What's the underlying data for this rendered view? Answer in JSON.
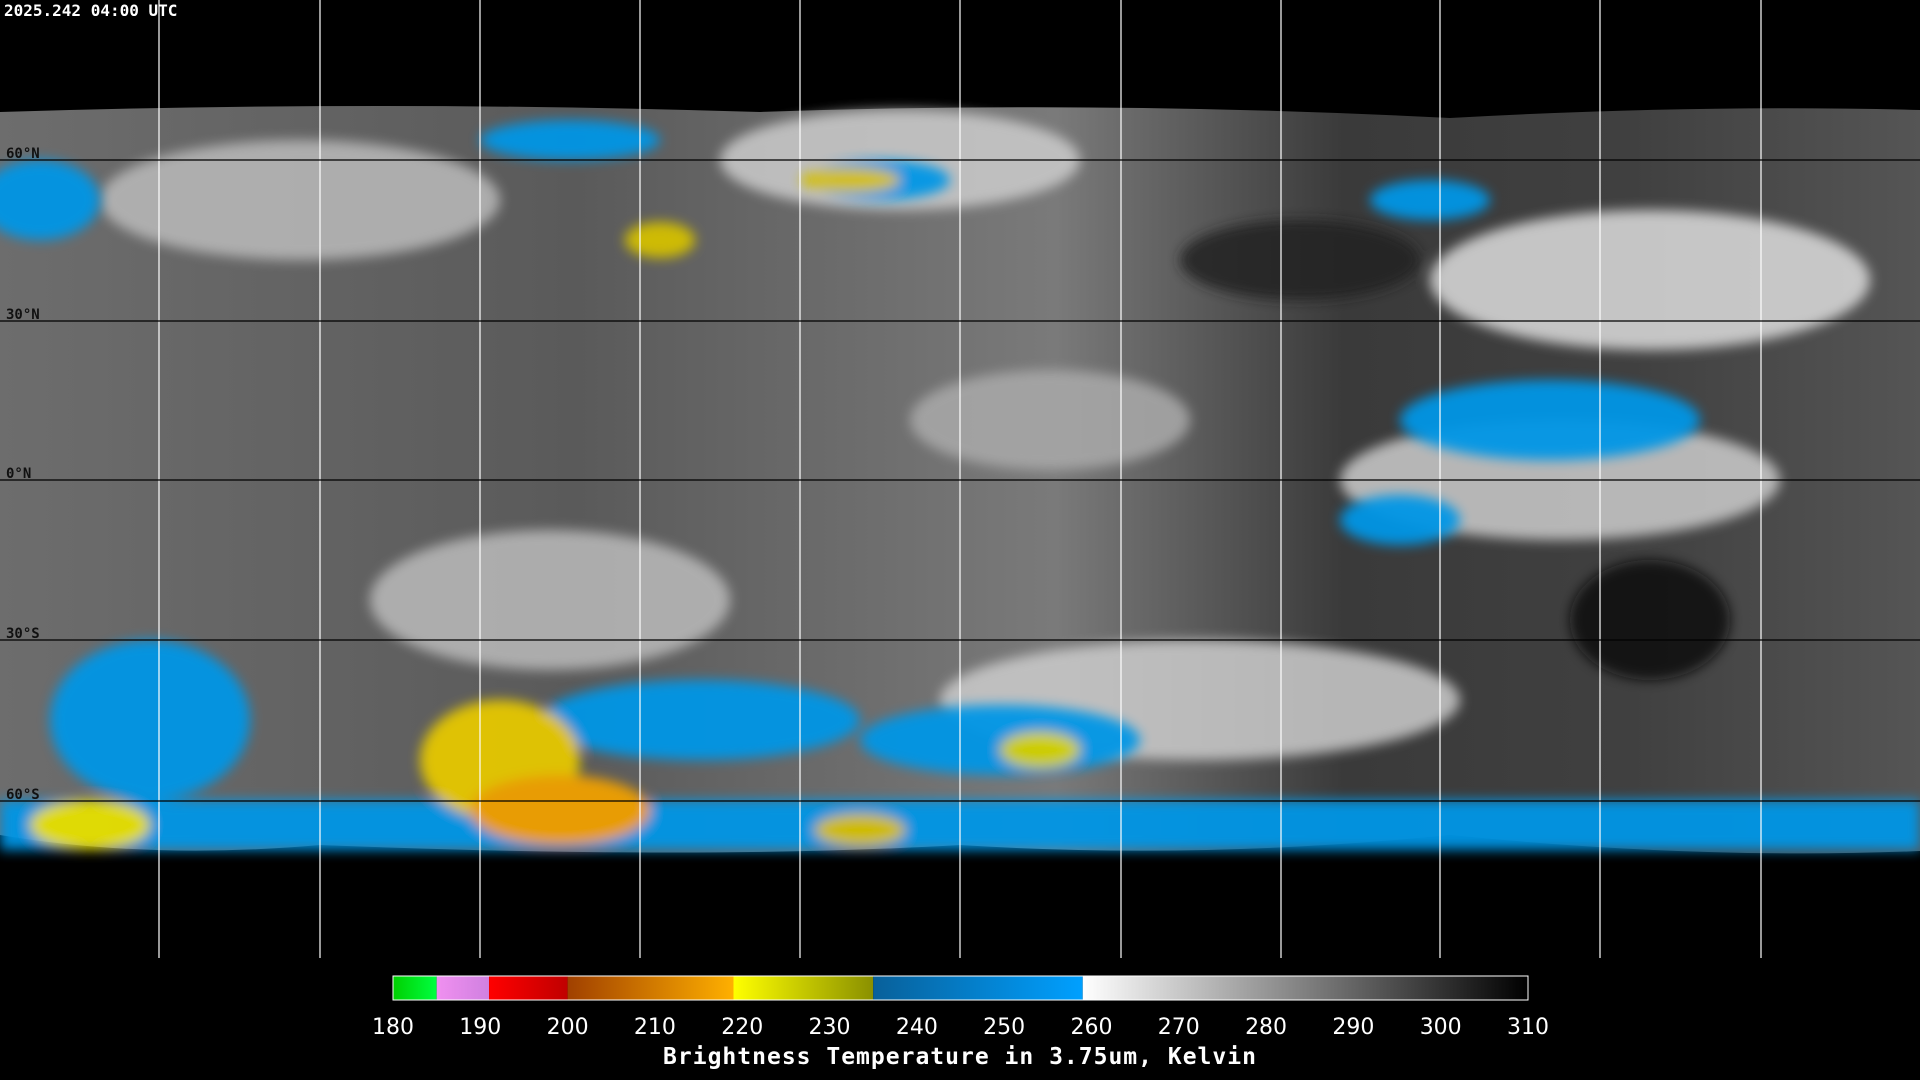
{
  "header": {
    "timestamp": "2025.242 04:00 UTC"
  },
  "map": {
    "latitude_labels": [
      "60°N",
      "30°N",
      "0°N",
      "30°S",
      "60°S"
    ]
  },
  "colorbar": {
    "range": [
      180,
      310
    ],
    "ticks": [
      180,
      190,
      200,
      210,
      220,
      230,
      240,
      250,
      260,
      270,
      280,
      290,
      300,
      310
    ],
    "segments": [
      {
        "from": 180,
        "to": 185,
        "colors": [
          "#00d000",
          "#00ff40"
        ]
      },
      {
        "from": 185,
        "to": 191,
        "colors": [
          "#f090f0",
          "#d080e0"
        ]
      },
      {
        "from": 191,
        "to": 200,
        "colors": [
          "#ff0000",
          "#c00000"
        ]
      },
      {
        "from": 200,
        "to": 219,
        "colors": [
          "#a04000",
          "#ffb000"
        ]
      },
      {
        "from": 219,
        "to": 235,
        "colors": [
          "#ffff00",
          "#8a9000"
        ]
      },
      {
        "from": 235,
        "to": 259,
        "colors": [
          "#08609a",
          "#00a0ff"
        ]
      },
      {
        "from": 259,
        "to": 310,
        "colors": [
          "#ffffff",
          "#000000"
        ]
      }
    ],
    "title": "Brightness Temperature in 3.75um, Kelvin"
  }
}
